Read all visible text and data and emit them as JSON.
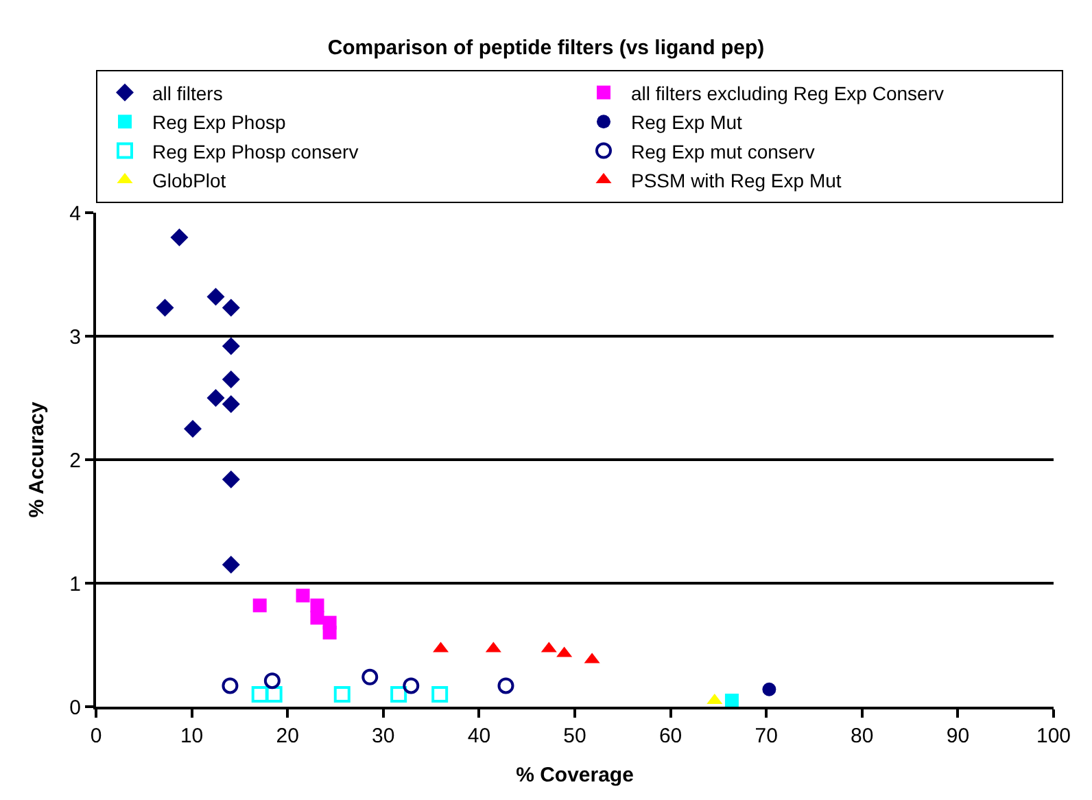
{
  "chart_data": {
    "type": "scatter",
    "title": "Comparison of peptide filters (vs ligand pep)",
    "xlabel": "% Coverage",
    "ylabel": "% Accuracy",
    "xlim": [
      0,
      100
    ],
    "xticks": [
      0,
      10,
      20,
      30,
      40,
      50,
      60,
      70,
      80,
      90,
      100
    ],
    "ylim": [
      0,
      4
    ],
    "yticks": [
      0,
      1,
      2,
      3,
      4
    ],
    "grid": "y",
    "legend": "top",
    "series": [
      {
        "name": "all filters",
        "color": "#000080",
        "marker": "diamond",
        "x": [
          8.7,
          7.2,
          12.5,
          14.1,
          14.1,
          14.1,
          12.5,
          14.1,
          10.1,
          14.1,
          14.1
        ],
        "values": [
          3.8,
          3.23,
          3.32,
          3.23,
          2.92,
          2.65,
          2.5,
          2.45,
          2.25,
          1.84,
          1.15
        ]
      },
      {
        "name": "all filters excluding Reg Exp Conserv",
        "color": "#ff00ff",
        "marker": "square",
        "x": [
          17.1,
          21.6,
          23.1,
          23.1,
          24.4,
          24.4
        ],
        "values": [
          0.82,
          0.9,
          0.82,
          0.72,
          0.68,
          0.6
        ]
      },
      {
        "name": "Reg Exp Phosp",
        "color": "#00ffff",
        "marker": "square",
        "x": [
          66.4
        ],
        "values": [
          0.05
        ]
      },
      {
        "name": "Reg Exp Mut",
        "color": "#000080",
        "marker": "circle",
        "x": [
          70.3
        ],
        "values": [
          0.14
        ]
      },
      {
        "name": "Reg Exp Phosp conserv",
        "color": "#00ffff",
        "marker": "square-open",
        "x": [
          17.1,
          18.6,
          25.7,
          31.6,
          35.9
        ],
        "values": [
          0.1,
          0.1,
          0.1,
          0.1,
          0.1
        ]
      },
      {
        "name": "Reg Exp mut conserv",
        "color": "#000080",
        "marker": "circle-open",
        "x": [
          14.0,
          18.4,
          28.6,
          32.9,
          42.8
        ],
        "values": [
          0.17,
          0.21,
          0.24,
          0.17,
          0.17
        ]
      },
      {
        "name": "GlobPlot",
        "color": "#ffff00",
        "marker": "triangle",
        "x": [
          64.6
        ],
        "values": [
          0.05
        ]
      },
      {
        "name": "PSSM with Reg Exp Mut",
        "color": "#ff0000",
        "marker": "triangle",
        "x": [
          36.0,
          41.5,
          47.3,
          48.9,
          51.8
        ],
        "values": [
          0.47,
          0.47,
          0.47,
          0.43,
          0.38
        ]
      }
    ]
  }
}
